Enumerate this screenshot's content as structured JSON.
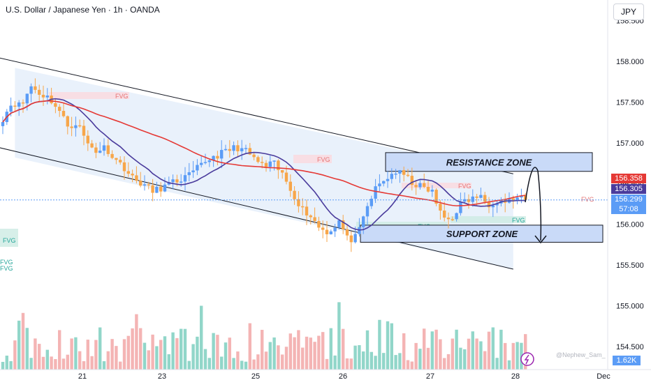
{
  "header": {
    "title": "U.S. Dollar / Japanese Yen · 1h · OANDA",
    "currency_button": "JPY"
  },
  "colors": {
    "bull": "#5b9cf6",
    "bear": "#f7a64a",
    "vol_up": "#7ecfc0",
    "vol_down": "#f2a7a7",
    "ma_fast": "#4a3b9c",
    "ma_slow": "#e53935",
    "zone_fill": "#c9daf8",
    "channel_fill": "#e9f1fb"
  },
  "chart_data": {
    "type": "candlestick",
    "title": "U.S. Dollar / Japanese Yen · 1h · OANDA",
    "ylim": [
      154.3,
      158.6
    ],
    "y_ticks": [
      "158.500",
      "158.000",
      "157.500",
      "157.000",
      "156.500",
      "156.000",
      "155.500",
      "155.000",
      "154.500"
    ],
    "y_tick_values": [
      158.5,
      158.0,
      157.5,
      157.0,
      156.5,
      156.0,
      155.5,
      155.0,
      154.5
    ],
    "x_ticks": [
      "21",
      "23",
      "25",
      "26",
      "27",
      "28",
      "Dec"
    ],
    "closes": [
      157.3,
      157.5,
      157.45,
      157.7,
      157.6,
      157.55,
      157.4,
      157.2,
      157.25,
      157.0,
      156.9,
      156.95,
      156.8,
      156.7,
      156.55,
      156.5,
      156.4,
      156.45,
      156.5,
      156.55,
      156.6,
      156.7,
      156.8,
      156.85,
      156.9,
      156.95,
      156.9,
      156.8,
      156.7,
      156.75,
      156.6,
      156.4,
      156.2,
      156.1,
      155.95,
      155.9,
      156.05,
      155.8,
      155.85,
      156.2,
      156.45,
      156.55,
      156.65,
      156.6,
      156.5,
      156.45,
      156.4,
      156.1,
      156.05,
      156.25,
      156.3,
      156.35,
      156.25,
      156.3,
      156.28,
      156.32,
      156.3
    ],
    "volume_range": [
      0,
      100
    ],
    "ma_fast_label": "",
    "ma_slow_label": "",
    "channel": {
      "upper": [
        [
          3,
          157.92
        ],
        [
          126,
          156.62
        ]
      ],
      "lower": [
        [
          3,
          156.82
        ],
        [
          126,
          155.45
        ]
      ]
    },
    "zones": [
      {
        "label": "RESISTANCE ZONE",
        "low": 156.65,
        "high": 156.88
      },
      {
        "label": "SUPPORT ZONE",
        "low": 155.78,
        "high": 155.99
      }
    ],
    "fvg_labels": [
      "FVG",
      "FVG",
      "FVG",
      "FVG",
      "FVG",
      "FVG",
      "FVG",
      "FVG",
      "FVG"
    ],
    "price_labels": [
      {
        "value": "156.358",
        "color": "#e53935"
      },
      {
        "value": "156.305",
        "color": "#4a3b9c"
      },
      {
        "value": "156.299",
        "color": "#5b9cf6"
      },
      {
        "value": "57:08",
        "color": "#5b9cf6"
      }
    ],
    "current_price": 156.299,
    "volume_badge": "1.62K",
    "watermark": "@Nephew_Sam_",
    "legend": "none",
    "grid": false
  }
}
